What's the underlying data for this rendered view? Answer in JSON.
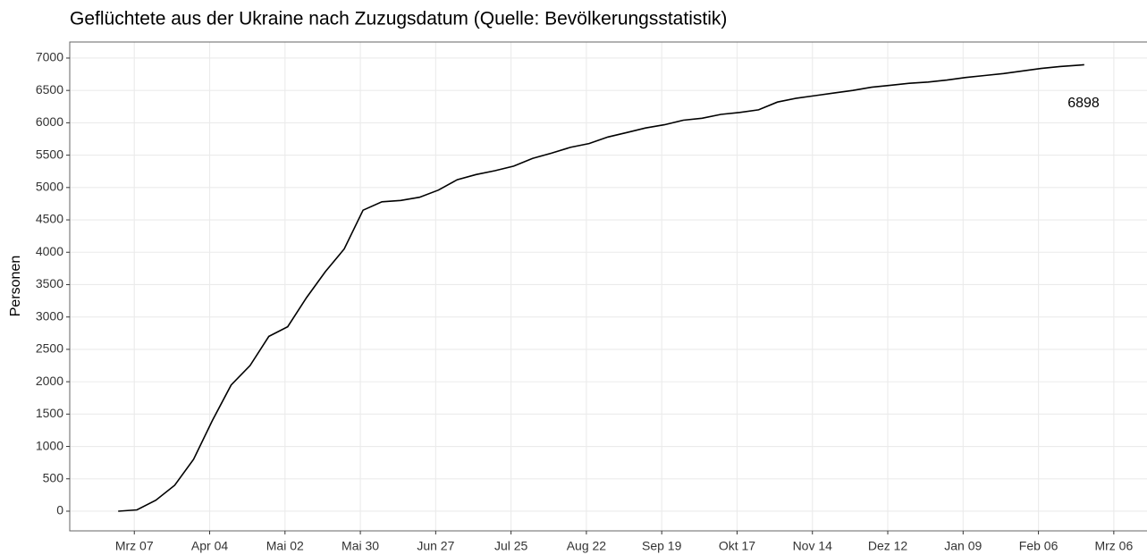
{
  "chart_data": {
    "type": "line",
    "title": "Geflüchtete aus der Ukraine nach Zuzugsdatum (Quelle: Bevölkerungsstatistik)",
    "y_label": "Personen",
    "annotation": "6898",
    "x": [
      "Mrz 01",
      "Mrz 08",
      "Mrz 15",
      "Mrz 22",
      "Mrz 29",
      "Apr 05",
      "Apr 12",
      "Apr 19",
      "Apr 26",
      "Mai 03",
      "Mai 10",
      "Mai 17",
      "Mai 24",
      "Mai 31",
      "Jun 07",
      "Jun 14",
      "Jun 21",
      "Jun 28",
      "Jul 05",
      "Jul 12",
      "Jul 19",
      "Jul 26",
      "Aug 02",
      "Aug 09",
      "Aug 16",
      "Aug 23",
      "Aug 30",
      "Sep 06",
      "Sep 13",
      "Sep 20",
      "Sep 27",
      "Okt 04",
      "Okt 11",
      "Okt 18",
      "Okt 25",
      "Nov 01",
      "Nov 08",
      "Nov 15",
      "Nov 22",
      "Nov 29",
      "Dez 06",
      "Dez 13",
      "Dez 20",
      "Dez 27",
      "Jan 03",
      "Jan 10",
      "Jan 17",
      "Jan 24",
      "Jan 31",
      "Feb 07",
      "Feb 14",
      "Feb 21",
      "Feb 23"
    ],
    "series": [
      {
        "name": "Personen",
        "color": "#000000",
        "values": [
          0,
          20,
          170,
          400,
          800,
          1400,
          1950,
          2250,
          2700,
          2850,
          3300,
          3700,
          4050,
          4650,
          4780,
          4800,
          4850,
          4960,
          5120,
          5200,
          5260,
          5330,
          5450,
          5530,
          5620,
          5680,
          5780,
          5850,
          5920,
          5970,
          6040,
          6070,
          6130,
          6160,
          6200,
          6320,
          6380,
          6420,
          6460,
          6500,
          6550,
          6580,
          6610,
          6630,
          6660,
          6700,
          6730,
          6760,
          6800,
          6840,
          6870,
          6890,
          6898
        ]
      }
    ],
    "xlim": [
      "Feb 11",
      "Mrz 20"
    ],
    "xticks": [
      "Mrz 07",
      "Apr 04",
      "Mai 02",
      "Mai 30",
      "Jun 27",
      "Jul 25",
      "Aug 22",
      "Sep 19",
      "Okt 17",
      "Nov 14",
      "Dez 12",
      "Jan 09",
      "Feb 06",
      "Mrz 06"
    ],
    "ylim": [
      -304,
      7248
    ],
    "yticks": [
      0,
      500,
      1000,
      1500,
      2000,
      2500,
      3000,
      3500,
      4000,
      4500,
      5000,
      5500,
      6000,
      6500,
      7000
    ],
    "grid": true
  }
}
